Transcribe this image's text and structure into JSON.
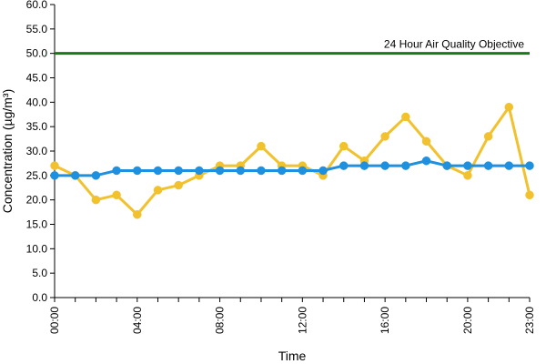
{
  "chart_data": {
    "type": "line",
    "xlabel": "Time",
    "ylabel": "Concentration (µg/m³)",
    "ylim": [
      0,
      60
    ],
    "y_ticks": [
      "0.0",
      "5.0",
      "10.0",
      "15.0",
      "20.0",
      "25.0",
      "30.0",
      "35.0",
      "40.0",
      "45.0",
      "50.0",
      "55.0",
      "60.0"
    ],
    "x_ticks": [
      {
        "hour": 0,
        "label": "00:00"
      },
      {
        "hour": 4,
        "label": "04:00"
      },
      {
        "hour": 8,
        "label": "08:00"
      },
      {
        "hour": 12,
        "label": "12:00"
      },
      {
        "hour": 16,
        "label": "16:00"
      },
      {
        "hour": 20,
        "label": "20:00"
      },
      {
        "hour": 23,
        "label": "23:00"
      }
    ],
    "x": [
      0,
      1,
      2,
      3,
      4,
      5,
      6,
      7,
      8,
      9,
      10,
      11,
      12,
      13,
      14,
      15,
      16,
      17,
      18,
      19,
      20,
      21,
      22,
      23
    ],
    "series": [
      {
        "values": [
          27,
          25,
          20,
          21,
          17,
          22,
          23,
          25,
          27,
          27,
          31,
          27,
          27,
          25,
          31,
          28,
          33,
          37,
          32,
          27,
          25,
          33,
          39,
          21
        ],
        "color": "#F2C12E"
      },
      {
        "values": [
          25,
          25,
          25,
          26,
          26,
          26,
          26,
          26,
          26,
          26,
          26,
          26,
          26,
          26,
          27,
          27,
          27,
          27,
          28,
          27,
          27,
          27,
          27,
          27
        ],
        "color": "#1E90E0"
      }
    ],
    "objective": {
      "value": 50,
      "label": "24 Hour Air Quality Objective",
      "color": "#1A7A1A"
    },
    "grid": false,
    "legend": "none"
  }
}
